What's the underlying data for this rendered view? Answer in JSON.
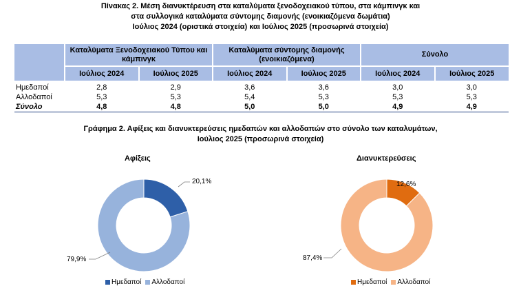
{
  "table": {
    "title_lines": [
      "Πίνακας 2. Μέση διανυκτέρευση στα καταλύματα ξενοδοχειακού τύπου, στα κάμπινγκ και",
      "στα συλλογικά καταλύματα σύντομης διαμονής (ενοικιαζόμενα δωμάτια)",
      "Ιούλιος 2024 (οριστικά στοιχεία) και Ιούλιος 2025 (προσωρινά στοιχεία)"
    ],
    "groups": [
      "Καταλύματα Ξενοδοχειακού Τύπου και κάμπινγκ",
      "Καταλύματα σύντομης διαμονής (ενοικιαζόμενα)",
      "Σύνολο"
    ],
    "subheaders": [
      "Ιούλιος 2024",
      "Ιούλιος 2025",
      "Ιούλιος 2024",
      "Ιούλιος 2025",
      "Ιούλιος 2024",
      "Ιούλιος 2025"
    ],
    "rows": [
      {
        "label": "Ημεδαποί",
        "values": [
          "2,8",
          "2,9",
          "3,6",
          "3,6",
          "3,0",
          "3,0"
        ]
      },
      {
        "label": "Αλλοδαποί",
        "values": [
          "5,3",
          "5,3",
          "5,4",
          "5,3",
          "5,3",
          "5,3"
        ]
      },
      {
        "label": "Σύνολο",
        "values": [
          "4,8",
          "4,8",
          "5,0",
          "5,0",
          "4,9",
          "4,9"
        ]
      }
    ]
  },
  "chart_section": {
    "title_lines": [
      "Γράφημα 2. Αφίξεις και διανυκτερεύσεις ημεδαπών και αλλοδαπών στο σύνολο των καταλυμάτων,",
      "Ιούλιος 2025  (προσωρινά στοιχεία)"
    ]
  },
  "chart_data": [
    {
      "type": "pie",
      "title": "Αφίξεις",
      "categories": [
        "Ημεδαποί",
        "Αλλοδαποί"
      ],
      "values": [
        20.1,
        79.9
      ],
      "value_labels": [
        "20,1%",
        "79,9%"
      ],
      "colors": [
        "#2e5fa8",
        "#97b3dc"
      ],
      "legend": "bottom"
    },
    {
      "type": "pie",
      "title": "Διανυκτερεύσεις",
      "categories": [
        "Ημεδαποί",
        "Αλλοδαποί"
      ],
      "values": [
        12.6,
        87.4
      ],
      "value_labels": [
        "12,6%",
        "87,4%"
      ],
      "colors": [
        "#e06c10",
        "#f6b486"
      ],
      "legend": "bottom"
    }
  ]
}
